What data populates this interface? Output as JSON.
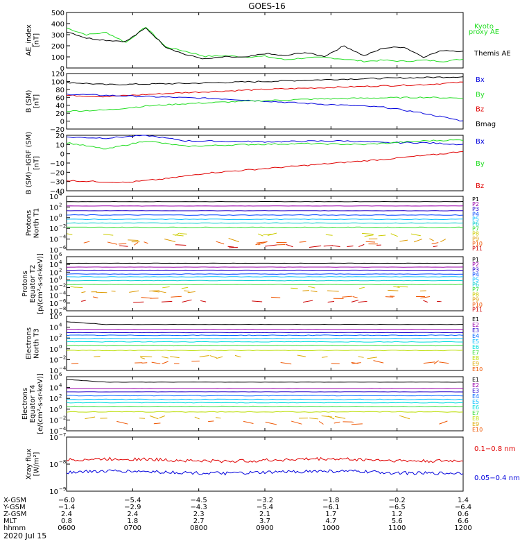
{
  "title": "GOES-16",
  "date_label": "2020 Jul 15",
  "colors": {
    "black": "#000000",
    "red": "#e00000",
    "green": "#22dd22",
    "blue": "#0000dd",
    "P": [
      "#000000",
      "#9900aa",
      "#2200cc",
      "#0044ff",
      "#00bbff",
      "#00cccc",
      "#33dd33",
      "#cccc00",
      "#dd9900",
      "#ee5500",
      "#cc0000"
    ],
    "E": [
      "#000000",
      "#9900aa",
      "#2200cc",
      "#0066ff",
      "#00bbff",
      "#00dddd",
      "#33dd33",
      "#bbdd00",
      "#ddaa00",
      "#ee5500",
      "#cc0000"
    ]
  },
  "chart_data": [
    {
      "type": "line",
      "ylabel": [
        "AE_index",
        "[nT]"
      ],
      "ylim": [
        0,
        500
      ],
      "yticks": [
        "500",
        "400",
        "300",
        "200",
        "100",
        "0"
      ],
      "yticks_at": [
        500,
        400,
        300,
        200,
        100,
        0
      ],
      "legend": [
        {
          "label": "Kyoto",
          "color": "#22dd22"
        },
        {
          "label": "proxy AE",
          "color": "#22dd22"
        },
        {
          "label": "Themis AE",
          "color": "#000000"
        }
      ],
      "series": [
        {
          "name": "Kyoto proxy AE",
          "color": "#22dd22",
          "x": [
            0,
            0.05,
            0.1,
            0.15,
            0.2,
            0.25,
            0.3,
            0.35,
            0.4,
            0.45,
            0.5,
            0.55,
            0.6,
            0.65,
            0.7,
            0.75,
            0.8,
            0.85,
            0.9,
            0.95,
            1
          ],
          "y": [
            360,
            300,
            320,
            230,
            370,
            190,
            150,
            105,
            110,
            100,
            105,
            75,
            90,
            95,
            80,
            60,
            70,
            60,
            70,
            60,
            80
          ]
        },
        {
          "name": "Themis AE",
          "color": "#000000",
          "x": [
            0,
            0.05,
            0.1,
            0.15,
            0.2,
            0.25,
            0.3,
            0.35,
            0.4,
            0.45,
            0.5,
            0.55,
            0.6,
            0.65,
            0.7,
            0.75,
            0.8,
            0.85,
            0.9,
            0.95,
            1
          ],
          "y": [
            330,
            270,
            250,
            240,
            360,
            190,
            120,
            80,
            100,
            95,
            130,
            110,
            140,
            105,
            200,
            110,
            180,
            190,
            100,
            160,
            150
          ]
        }
      ]
    },
    {
      "type": "line",
      "ylabel": [
        "B (SM)",
        "[nT]"
      ],
      "ylim": [
        -20,
        120
      ],
      "yticks": [
        "120",
        "100",
        "80",
        "60",
        "40",
        "20",
        "0",
        "−20"
      ],
      "yticks_at": [
        120,
        100,
        80,
        60,
        40,
        20,
        0,
        -20
      ],
      "legend": [
        {
          "label": "Bx",
          "color": "#0000dd"
        },
        {
          "label": "By",
          "color": "#22dd22"
        },
        {
          "label": "Bz",
          "color": "#e00000"
        },
        {
          "label": "Bmag",
          "color": "#000000"
        }
      ],
      "series": [
        {
          "name": "Bmag",
          "color": "#000000",
          "x": [
            0,
            0.1,
            0.3,
            0.5,
            0.7,
            0.9,
            1
          ],
          "y": [
            98,
            92,
            95,
            100,
            106,
            110,
            112
          ]
        },
        {
          "name": "Bz",
          "color": "#e00000",
          "x": [
            0,
            0.1,
            0.3,
            0.5,
            0.7,
            0.9,
            1
          ],
          "y": [
            65,
            62,
            72,
            80,
            86,
            92,
            98
          ]
        },
        {
          "name": "Bx",
          "color": "#0000dd",
          "x": [
            0,
            0.2,
            0.4,
            0.6,
            0.8,
            0.9,
            1
          ],
          "y": [
            68,
            62,
            56,
            45,
            35,
            20,
            0
          ]
        },
        {
          "name": "By",
          "color": "#22dd22",
          "x": [
            0,
            0.1,
            0.2,
            0.3,
            0.45,
            0.6,
            0.75,
            0.9,
            1
          ],
          "y": [
            25,
            28,
            38,
            44,
            50,
            55,
            58,
            60,
            58
          ]
        }
      ]
    },
    {
      "type": "line",
      "ylabel": [
        "B (SM)−IGRF (SM)",
        "[nT]"
      ],
      "ylim": [
        -40,
        20
      ],
      "yticks": [
        "20",
        "10",
        "0",
        "−10",
        "−20",
        "−30",
        "−40"
      ],
      "yticks_at": [
        20,
        10,
        0,
        -10,
        -20,
        -30,
        -40
      ],
      "legend": [
        {
          "label": "Bx",
          "color": "#0000dd"
        },
        {
          "label": "By",
          "color": "#22dd22"
        },
        {
          "label": "Bz",
          "color": "#e00000"
        }
      ],
      "series": [
        {
          "name": "Bx",
          "color": "#0000dd",
          "x": [
            0,
            0.1,
            0.2,
            0.3,
            0.5,
            0.7,
            0.8,
            0.9,
            1
          ],
          "y": [
            18,
            17,
            20,
            14,
            13,
            14,
            12,
            12,
            10
          ]
        },
        {
          "name": "By",
          "color": "#22dd22",
          "x": [
            0,
            0.1,
            0.2,
            0.3,
            0.45,
            0.6,
            0.75,
            0.9,
            1
          ],
          "y": [
            12,
            5,
            14,
            8,
            10,
            11,
            10,
            14,
            15
          ]
        },
        {
          "name": "Bz",
          "color": "#e00000",
          "x": [
            0,
            0.15,
            0.25,
            0.35,
            0.5,
            0.65,
            0.8,
            0.95,
            1
          ],
          "y": [
            -29,
            -31,
            -27,
            -21,
            -16,
            -11,
            -6,
            0,
            3
          ]
        }
      ]
    },
    {
      "type": "line",
      "log_scale": true,
      "ylabel": [
        "Protons",
        "North T1"
      ],
      "ylim_exp": [
        -6,
        4
      ],
      "ytick_exps": [
        4,
        2,
        0,
        -2,
        -4,
        -6
      ],
      "channels": [
        "P1",
        "P2",
        "P3",
        "P4",
        "P5",
        "P6",
        "P7",
        "P8",
        "P9",
        "P10",
        "P11"
      ],
      "levels_exp": [
        3.0,
        2.2,
        1.3,
        0.5,
        -0.3,
        -1.0,
        -1.8,
        -3.2,
        -4.2,
        -4.8,
        -5.3
      ],
      "partial_from": 7
    },
    {
      "type": "line",
      "log_scale": true,
      "ylabel": [
        "Protons",
        "Equator T2",
        "[p/(cm²-s-sr-keV)]"
      ],
      "ylim_exp": [
        -8,
        6
      ],
      "ytick_exps": [
        6,
        4,
        2,
        0,
        -2,
        -4,
        -6,
        -8
      ],
      "channels": [
        "P1",
        "P2",
        "P3",
        "P4",
        "P5",
        "P6",
        "P7",
        "P8",
        "P9",
        "P10",
        "P11"
      ],
      "levels_exp": [
        4.3,
        3.3,
        2.5,
        1.5,
        0.8,
        -0.2,
        -1.2,
        -2.0,
        -3.0,
        -4.5,
        -5.5
      ],
      "partial_from": 7
    },
    {
      "type": "line",
      "log_scale": true,
      "ylabel": [
        "Electrons",
        "North T3"
      ],
      "ylim_exp": [
        -4,
        6
      ],
      "ytick_exps": [
        6,
        4,
        2,
        0,
        -2,
        -4
      ],
      "channels": [
        "E1",
        "E2",
        "E3",
        "E4",
        "E5",
        "E6",
        "E7",
        "E8",
        "E9",
        "E10"
      ],
      "levels_exp": [
        4.5,
        3.6,
        3.0,
        2.5,
        1.9,
        1.3,
        0.6,
        -0.3,
        -1.5,
        -2.5
      ],
      "partial_from": 8
    },
    {
      "type": "line",
      "log_scale": true,
      "ylabel": [
        "Electrons",
        "Equator T4",
        "[e/(cm²-s-sr-keV)]"
      ],
      "ylim_exp": [
        -4,
        6
      ],
      "ytick_exps": [
        6,
        4,
        2,
        0,
        -2,
        -4
      ],
      "channels": [
        "E1",
        "E2",
        "E3",
        "E4",
        "E5",
        "E6",
        "E7",
        "E8",
        "E9",
        "E10"
      ],
      "levels_exp": [
        5.0,
        3.8,
        3.2,
        2.5,
        1.8,
        1.2,
        0.5,
        -0.5,
        -1.5,
        -2.5
      ],
      "partial_from": 8
    },
    {
      "type": "line",
      "log_scale": true,
      "ylabel": [
        "Xray flux",
        "[W/m²]"
      ],
      "ylim_exp": [
        -9,
        -7
      ],
      "ytick_exps": [
        -7,
        -8,
        -9
      ],
      "legend": [
        {
          "label": "0.1−0.8 nm",
          "color": "#e00000"
        },
        {
          "label": "0.05−0.4 nm",
          "color": "#0000dd"
        }
      ],
      "levels_exp": [
        -7.85,
        -8.3
      ]
    }
  ],
  "x_axis": {
    "row_labels": [
      "X-GSM",
      "Y-GSM",
      "Z-GSM",
      "MLT",
      "hhmm"
    ],
    "columns": [
      [
        "−6.0",
        "−1.4",
        "2.4",
        "0.8",
        "0600"
      ],
      [
        "−5.4",
        "−2.9",
        "2.4",
        "1.8",
        "0700"
      ],
      [
        "−4.5",
        "−4.3",
        "2.3",
        "2.7",
        "0800"
      ],
      [
        "−3.2",
        "−5.4",
        "2.1",
        "3.7",
        "0900"
      ],
      [
        "−1.8",
        "−6.1",
        "1.7",
        "4.7",
        "1000"
      ],
      [
        "−0.2",
        "−6.5",
        "1.2",
        "5.6",
        "1100"
      ],
      [
        "1.4",
        "−6.4",
        "0.6",
        "6.6",
        "1200"
      ]
    ]
  }
}
